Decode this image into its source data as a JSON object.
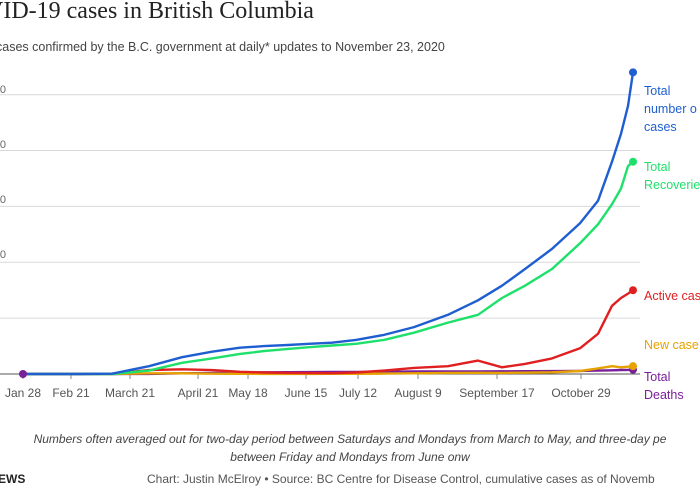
{
  "title": "VID-19 cases in British Columbia",
  "subtitle": "cases confirmed by the B.C. government at daily* updates to November 23, 2020",
  "footnote": {
    "line1": "Numbers often averaged out for two-day period between Saturdays and Mondays from March to May, and three-day pe",
    "line2": "between Friday and Mondays from June onw"
  },
  "brand": "EWS",
  "credit": "Chart: Justin McElroy • Source: BC Centre for Disease Control, cumulative cases as of Novemb",
  "colors": {
    "total": "#1f5ed1",
    "recovered": "#1ee06a",
    "active": "#e02020",
    "new": "#e6a200",
    "deaths": "#7a1f9a",
    "grid": "#d9d9d9",
    "axis": "#555555"
  },
  "chart_data": {
    "type": "line",
    "xlabel": "",
    "ylabel": "",
    "x_ticks": [
      "Jan 28",
      "Feb 21",
      "March 21",
      "April 21",
      "May 18",
      "June 15",
      "July 12",
      "August 9",
      "September 17",
      "October 29"
    ],
    "y_ticks": [
      "0",
      "0",
      "0",
      "0"
    ],
    "grid": true,
    "legend": "direct labels at line ends",
    "x": [
      "Jan 28",
      "Feb 21",
      "Mar 5",
      "Mar 21",
      "Apr 5",
      "Apr 21",
      "May 5",
      "May 18",
      "Jun 1",
      "Jun 15",
      "Jun 29",
      "Jul 12",
      "Jul 26",
      "Aug 9",
      "Aug 23",
      "Sep 3",
      "Sep 17",
      "Oct 1",
      "Oct 15",
      "Oct 29",
      "Nov 5",
      "Nov 12",
      "Nov 16",
      "Nov 19",
      "Nov 23"
    ],
    "series": [
      {
        "name": "Total number of cases",
        "label_lines": [
          "Total",
          "number o",
          "cases"
        ],
        "color_key": "total",
        "values": [
          0,
          0,
          30,
          700,
          1500,
          2000,
          2350,
          2500,
          2600,
          2700,
          2800,
          3050,
          3500,
          4200,
          5300,
          6600,
          7900,
          9400,
          11200,
          13500,
          15500,
          19000,
          21500,
          24000,
          27000
        ]
      },
      {
        "name": "Total Recoveries",
        "label_lines": [
          "Total",
          "Recoverie"
        ],
        "color_key": "recovered",
        "values": [
          0,
          0,
          0,
          300,
          1000,
          1400,
          1800,
          2050,
          2250,
          2400,
          2550,
          2700,
          3050,
          3700,
          4600,
          5300,
          6800,
          7900,
          9400,
          11700,
          13400,
          15200,
          16600,
          18600,
          19000
        ]
      },
      {
        "name": "Active cases",
        "label_lines": [
          "Active cas"
        ],
        "color_key": "active",
        "values": [
          0,
          0,
          30,
          350,
          420,
          350,
          200,
          130,
          100,
          80,
          70,
          130,
          300,
          550,
          700,
          1200,
          600,
          900,
          1400,
          2300,
          3600,
          6100,
          6800,
          7200,
          7500
        ]
      },
      {
        "name": "New cases",
        "label_lines": [
          "New case"
        ],
        "color_key": "new",
        "values": [
          0,
          0,
          10,
          60,
          60,
          30,
          20,
          10,
          10,
          10,
          15,
          20,
          40,
          60,
          100,
          110,
          100,
          120,
          150,
          270,
          500,
          700,
          600,
          650,
          700
        ]
      },
      {
        "name": "Total Deaths",
        "label_lines": [
          "Total",
          "Deaths"
        ],
        "color_key": "deaths",
        "values": [
          0,
          0,
          0,
          10,
          60,
          100,
          120,
          150,
          160,
          170,
          180,
          190,
          200,
          220,
          220,
          230,
          240,
          250,
          260,
          280,
          300,
          330,
          360,
          370,
          390
        ]
      }
    ]
  }
}
